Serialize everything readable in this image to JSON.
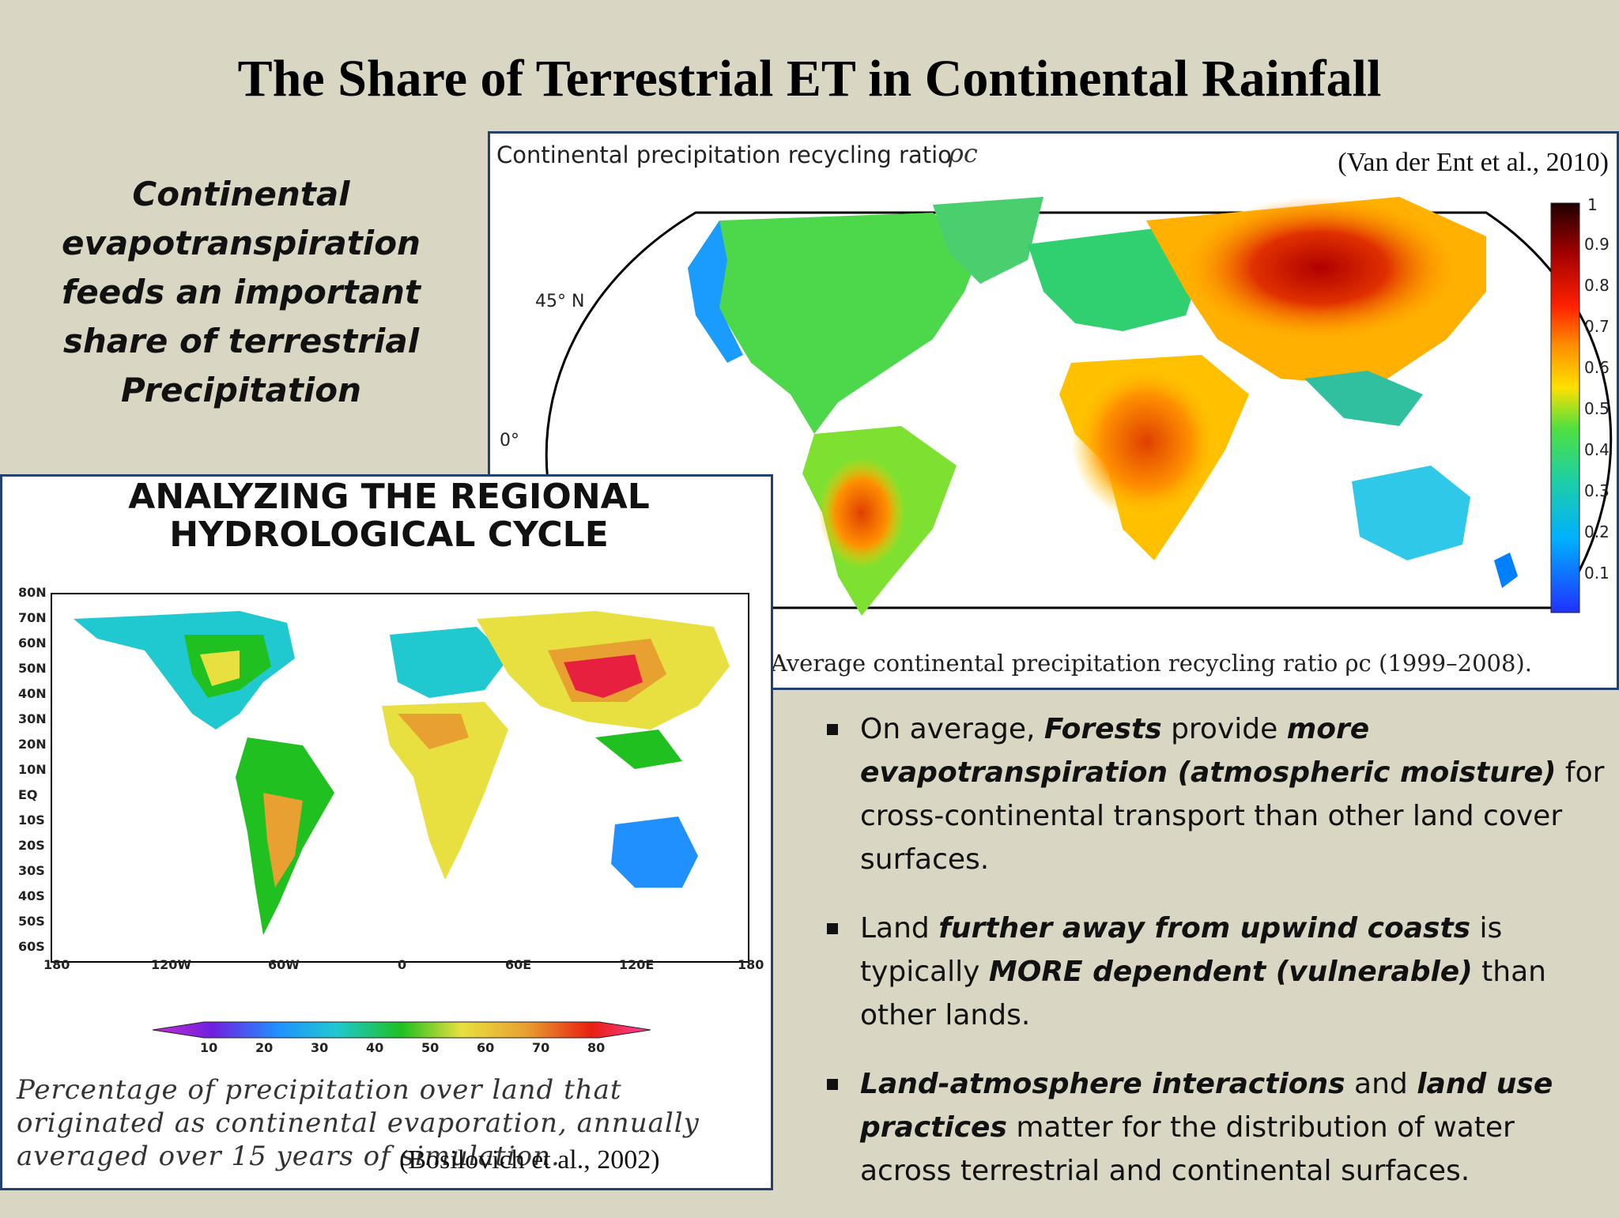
{
  "title": "The Share of Terrestrial ET in Continental Rainfall",
  "lead_text": [
    "Continental",
    "evapotranspiration",
    "feeds an important",
    "share of terrestrial",
    "Precipitation"
  ],
  "figure_top": {
    "title": "Continental precipitation recycling ratio",
    "title_symbol": "ρc",
    "citation": "(Van der Ent et al., 2010)",
    "lat_labels": [
      "45° N",
      "0°"
    ],
    "colorbar_ticks": [
      "1",
      "0.9",
      "0.8",
      "0.7",
      "0.6",
      "0.5",
      "0.4",
      "0.3",
      "0.2",
      "0.1"
    ],
    "caption": "Average continental precipitation recycling ratio ρc (1999–2008)."
  },
  "figure_bottom": {
    "title_line1": "ANALYZING THE REGIONAL",
    "title_line2": "HYDROLOGICAL CYCLE",
    "lat_ticks": [
      "80N",
      "70N",
      "60N",
      "50N",
      "40N",
      "30N",
      "20N",
      "10N",
      "EQ",
      "10S",
      "20S",
      "30S",
      "40S",
      "50S",
      "60S"
    ],
    "lon_ticks": [
      "180",
      "120W",
      "60W",
      "0",
      "60E",
      "120E",
      "180"
    ],
    "colorbar_ticks": [
      "10",
      "20",
      "30",
      "40",
      "50",
      "60",
      "70",
      "80"
    ],
    "caption": "Percentage of precipitation over land that originated as continental evaporation, annually averaged over 15 years of simulation.",
    "citation": "(Bosilovich et al., 2002)"
  },
  "bullets": [
    {
      "parts": [
        {
          "t": "On average, ",
          "b": false
        },
        {
          "t": "Forests",
          "b": true
        },
        {
          "t": " provide ",
          "b": false
        },
        {
          "t": "more evapotranspiration (atmospheric moisture)",
          "b": true
        },
        {
          "t": " for cross-continental transport than other land cover surfaces.",
          "b": false
        }
      ]
    },
    {
      "parts": [
        {
          "t": "Land ",
          "b": false
        },
        {
          "t": "further away from upwind coasts",
          "b": true
        },
        {
          "t": " is typically ",
          "b": false
        },
        {
          "t": "MORE dependent (vulnerable)",
          "b": true
        },
        {
          "t": " than other lands.",
          "b": false
        }
      ]
    },
    {
      "parts": [
        {
          "t": "Land-atmosphere interactions",
          "b": true
        },
        {
          "t": " and ",
          "b": false
        },
        {
          "t": "land use practices",
          "b": true
        },
        {
          "t": " matter for the distribution of water across terrestrial and continental surfaces.",
          "b": false
        }
      ]
    }
  ]
}
